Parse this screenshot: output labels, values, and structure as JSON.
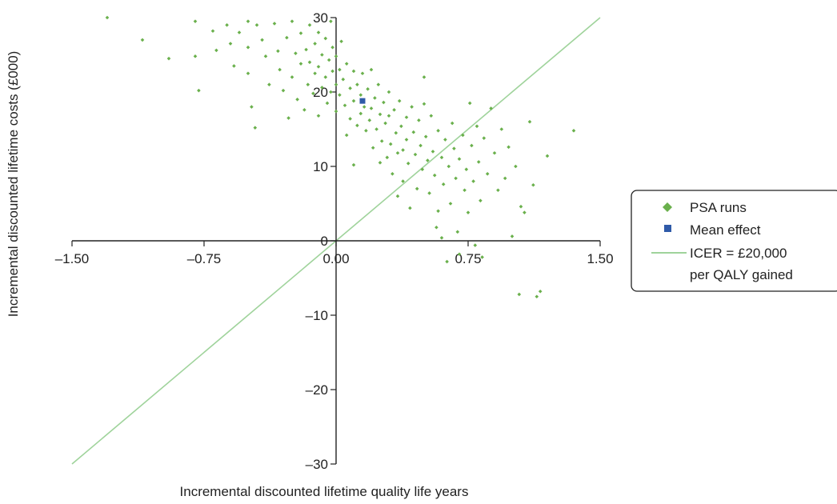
{
  "chart_data": {
    "type": "scatter",
    "title": "",
    "xlabel": "Incremental discounted lifetime quality life years",
    "ylabel": "Incremental discounted lifetime costs (£000)",
    "xlim": [
      -1.5,
      1.5
    ],
    "ylim": [
      -30,
      30
    ],
    "x_ticks": [
      -1.5,
      -0.75,
      0,
      0.75,
      1.5
    ],
    "x_tick_labels": [
      "–1.50",
      "–0.75",
      "0.00",
      "0.75",
      "1.50"
    ],
    "y_ticks": [
      -30,
      -20,
      -10,
      0,
      10,
      20,
      30
    ],
    "y_tick_labels": [
      "–30",
      "–20",
      "–10",
      "0",
      "10",
      "20",
      "30"
    ],
    "grid": false,
    "legend_position": "right",
    "colors": {
      "psa": "#6ab04c",
      "mean": "#2f5aa8",
      "icer_line": "#9fd39b",
      "axis": "#222222"
    },
    "series": [
      {
        "name": "PSA runs",
        "marker": "diamond",
        "points": [
          [
            -1.3,
            30
          ],
          [
            -1.1,
            27
          ],
          [
            -0.95,
            24.5
          ],
          [
            -0.8,
            29.5
          ],
          [
            -0.8,
            24.8
          ],
          [
            -0.78,
            20.2
          ],
          [
            -0.7,
            28.2
          ],
          [
            -0.68,
            25.6
          ],
          [
            -0.62,
            29
          ],
          [
            -0.6,
            26.5
          ],
          [
            -0.58,
            23.5
          ],
          [
            -0.55,
            28
          ],
          [
            -0.5,
            29.5
          ],
          [
            -0.5,
            26
          ],
          [
            -0.5,
            22.5
          ],
          [
            -0.48,
            18
          ],
          [
            -0.46,
            15.2
          ],
          [
            -0.45,
            29
          ],
          [
            -0.42,
            27
          ],
          [
            -0.4,
            24.8
          ],
          [
            -0.38,
            21
          ],
          [
            -0.35,
            29.2
          ],
          [
            -0.33,
            25.5
          ],
          [
            -0.32,
            23
          ],
          [
            -0.3,
            20.2
          ],
          [
            -0.28,
            27.3
          ],
          [
            -0.27,
            16.5
          ],
          [
            -0.25,
            29.5
          ],
          [
            -0.25,
            22
          ],
          [
            -0.23,
            25.2
          ],
          [
            -0.22,
            19
          ],
          [
            -0.2,
            27.9
          ],
          [
            -0.2,
            23.8
          ],
          [
            -0.18,
            17.6
          ],
          [
            -0.17,
            25.7
          ],
          [
            -0.16,
            21
          ],
          [
            -0.15,
            29
          ],
          [
            -0.15,
            24
          ],
          [
            -0.13,
            19.8
          ],
          [
            -0.12,
            26.5
          ],
          [
            -0.12,
            22.5
          ],
          [
            -0.1,
            28
          ],
          [
            -0.1,
            23.4
          ],
          [
            -0.1,
            16.8
          ],
          [
            -0.08,
            25
          ],
          [
            -0.08,
            20.6
          ],
          [
            -0.06,
            27.2
          ],
          [
            -0.06,
            22
          ],
          [
            -0.05,
            18.5
          ],
          [
            -0.04,
            24.3
          ],
          [
            -0.03,
            29.5
          ],
          [
            -0.03,
            20
          ],
          [
            -0.02,
            26
          ],
          [
            -0.02,
            22.8
          ],
          [
            0,
            24.8
          ],
          [
            0,
            21
          ],
          [
            0,
            17.4
          ],
          [
            0.02,
            23
          ],
          [
            0.02,
            19.6
          ],
          [
            0.03,
            26.8
          ],
          [
            0.04,
            21.7
          ],
          [
            0.05,
            18.2
          ],
          [
            0.06,
            23.8
          ],
          [
            0.06,
            14.2
          ],
          [
            0.08,
            20.5
          ],
          [
            0.08,
            16.4
          ],
          [
            0.1,
            22.8
          ],
          [
            0.1,
            18.8
          ],
          [
            0.1,
            10.2
          ],
          [
            0.12,
            21
          ],
          [
            0.12,
            15.5
          ],
          [
            0.14,
            19.6
          ],
          [
            0.14,
            17.1
          ],
          [
            0.15,
            22.5
          ],
          [
            0.16,
            18
          ],
          [
            0.17,
            14.8
          ],
          [
            0.18,
            20.4
          ],
          [
            0.19,
            16.2
          ],
          [
            0.2,
            23
          ],
          [
            0.2,
            17.8
          ],
          [
            0.21,
            12.5
          ],
          [
            0.22,
            19.2
          ],
          [
            0.23,
            15
          ],
          [
            0.24,
            21
          ],
          [
            0.25,
            17
          ],
          [
            0.25,
            10.5
          ],
          [
            0.26,
            13.4
          ],
          [
            0.27,
            18.6
          ],
          [
            0.28,
            15.8
          ],
          [
            0.29,
            11.2
          ],
          [
            0.3,
            20
          ],
          [
            0.3,
            16.8
          ],
          [
            0.31,
            13
          ],
          [
            0.32,
            9
          ],
          [
            0.33,
            17.6
          ],
          [
            0.34,
            14.5
          ],
          [
            0.35,
            6
          ],
          [
            0.35,
            11.8
          ],
          [
            0.36,
            18.8
          ],
          [
            0.37,
            15.4
          ],
          [
            0.38,
            12.2
          ],
          [
            0.38,
            8
          ],
          [
            0.4,
            16.6
          ],
          [
            0.4,
            13.6
          ],
          [
            0.41,
            10.4
          ],
          [
            0.42,
            4.4
          ],
          [
            0.43,
            18
          ],
          [
            0.44,
            14.6
          ],
          [
            0.45,
            11.6
          ],
          [
            0.46,
            7
          ],
          [
            0.47,
            16.2
          ],
          [
            0.48,
            12.8
          ],
          [
            0.49,
            9.6
          ],
          [
            0.5,
            22
          ],
          [
            0.5,
            18.4
          ],
          [
            0.51,
            14
          ],
          [
            0.52,
            10.8
          ],
          [
            0.53,
            6.4
          ],
          [
            0.54,
            16.8
          ],
          [
            0.55,
            12
          ],
          [
            0.56,
            8.8
          ],
          [
            0.57,
            1.8
          ],
          [
            0.58,
            14.8
          ],
          [
            0.58,
            4
          ],
          [
            0.6,
            11.2
          ],
          [
            0.6,
            0.4
          ],
          [
            0.61,
            7.6
          ],
          [
            0.62,
            13.6
          ],
          [
            0.63,
            -2.8
          ],
          [
            0.64,
            10
          ],
          [
            0.65,
            5
          ],
          [
            0.66,
            15.8
          ],
          [
            0.67,
            12.4
          ],
          [
            0.68,
            8.4
          ],
          [
            0.69,
            1.2
          ],
          [
            0.7,
            11
          ],
          [
            0.7,
            -1.8
          ],
          [
            0.72,
            14.2
          ],
          [
            0.73,
            6.8
          ],
          [
            0.74,
            9.6
          ],
          [
            0.75,
            3.8
          ],
          [
            0.76,
            18.5
          ],
          [
            0.77,
            12.8
          ],
          [
            0.78,
            8
          ],
          [
            0.79,
            -0.6
          ],
          [
            0.8,
            15.4
          ],
          [
            0.81,
            10.6
          ],
          [
            0.82,
            5.4
          ],
          [
            0.83,
            -2.2
          ],
          [
            0.84,
            13.8
          ],
          [
            0.86,
            9
          ],
          [
            0.88,
            17.8
          ],
          [
            0.9,
            11.8
          ],
          [
            0.92,
            6.8
          ],
          [
            0.94,
            15
          ],
          [
            0.96,
            8.4
          ],
          [
            0.98,
            12.6
          ],
          [
            1.0,
            0.6
          ],
          [
            1.02,
            10
          ],
          [
            1.05,
            4.6
          ],
          [
            1.07,
            3.8
          ],
          [
            1.1,
            16
          ],
          [
            1.12,
            7.5
          ],
          [
            1.14,
            -7.5
          ],
          [
            1.16,
            -6.8
          ],
          [
            1.2,
            11.4
          ],
          [
            1.35,
            14.8
          ],
          [
            1.04,
            -7.2
          ]
        ]
      },
      {
        "name": "Mean effect",
        "marker": "square",
        "points": [
          [
            0.15,
            18.8
          ]
        ]
      },
      {
        "name": "ICER = £20,000 per QALY gained",
        "marker": "line",
        "points": [
          [
            -1.5,
            -30
          ],
          [
            1.5,
            30
          ]
        ]
      }
    ]
  },
  "legend": {
    "items": [
      {
        "label_lines": [
          "PSA runs"
        ]
      },
      {
        "label_lines": [
          "Mean effect"
        ]
      },
      {
        "label_lines": [
          "ICER = £20,000",
          "per QALY gained"
        ]
      }
    ]
  }
}
